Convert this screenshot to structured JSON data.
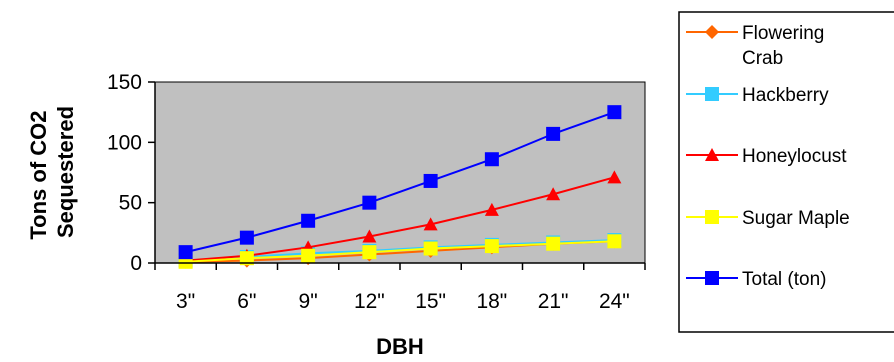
{
  "chart_data": {
    "type": "line",
    "title": "",
    "xlabel": "DBH",
    "ylabel_lines": [
      "Tons of CO2",
      "Sequestered"
    ],
    "categories": [
      "3\"",
      "6\"",
      "9\"",
      "12\"",
      "15\"",
      "18\"",
      "21\"",
      "24\""
    ],
    "ylim": [
      0,
      150
    ],
    "yticks": [
      0,
      50,
      100,
      150
    ],
    "grid": false,
    "plot_background": "#C0C0C0",
    "legend_position": "right",
    "series": [
      {
        "name_lines": [
          "Flowering",
          "Crab"
        ],
        "color": "#FF6600",
        "marker": "diamond",
        "values": [
          1,
          2,
          4,
          7,
          10,
          13,
          16,
          18
        ]
      },
      {
        "name_lines": [
          "Hackberry"
        ],
        "color": "#33CCFF",
        "marker": "square",
        "values": [
          2,
          5,
          8,
          10,
          13,
          15,
          17,
          19
        ]
      },
      {
        "name_lines": [
          "Honeylocust"
        ],
        "color": "#FF0000",
        "marker": "triangle",
        "values": [
          2,
          6,
          13,
          22,
          32,
          44,
          57,
          71
        ]
      },
      {
        "name_lines": [
          "Sugar Maple"
        ],
        "color": "#FFFF00",
        "marker": "square",
        "values": [
          1,
          4,
          6,
          9,
          12,
          14,
          16,
          18
        ]
      },
      {
        "name_lines": [
          "Total (ton)"
        ],
        "color": "#0000FF",
        "marker": "square",
        "values": [
          9,
          21,
          35,
          50,
          68,
          86,
          107,
          125
        ]
      }
    ]
  }
}
